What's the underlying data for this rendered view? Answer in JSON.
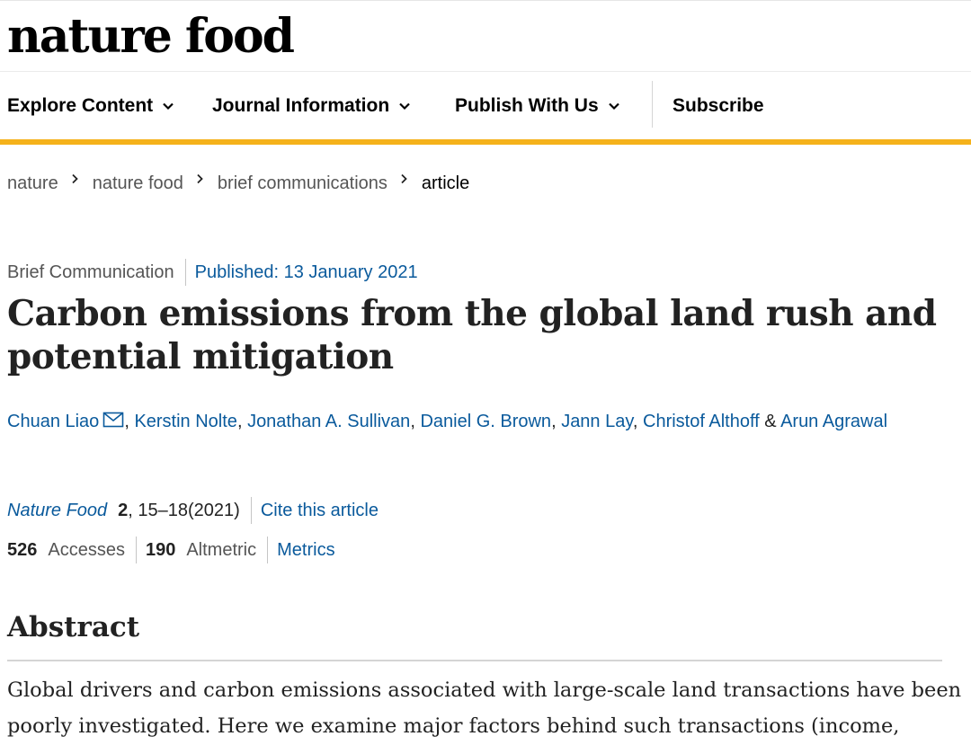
{
  "site": {
    "logo": "nature food"
  },
  "nav": {
    "items": [
      {
        "label": "Explore Content"
      },
      {
        "label": "Journal Information"
      },
      {
        "label": "Publish With Us"
      }
    ],
    "subscribe": "Subscribe",
    "accent_color": "#f5b21b"
  },
  "breadcrumb": {
    "items": [
      "nature",
      "nature food",
      "brief communications"
    ],
    "current": "article"
  },
  "article": {
    "type": "Brief Communication",
    "published": "Published: 13 January 2021",
    "title": "Carbon emissions from the global land rush and potential mitigation",
    "authors": [
      "Chuan Liao",
      "Kerstin Nolte",
      "Jonathan A. Sullivan",
      "Daniel G. Brown",
      "Jann Lay",
      "Christof Althoff",
      "Arun Agrawal"
    ],
    "author_sep": ", ",
    "author_last_sep": " & ",
    "journal": "Nature Food",
    "volume": "2",
    "pages_year": ", 15–18(2021)",
    "cite_label": "Cite this article",
    "accesses_count": "526",
    "accesses_label": "Accesses",
    "altmetric_count": "190",
    "altmetric_label": "Altmetric",
    "metrics_label": "Metrics",
    "link_color": "#0a5a9c"
  },
  "abstract": {
    "heading": "Abstract",
    "text": "Global drivers and carbon emissions associated with large-scale land transactions have been poorly investigated. Here we examine major factors behind such transactions (income,"
  }
}
